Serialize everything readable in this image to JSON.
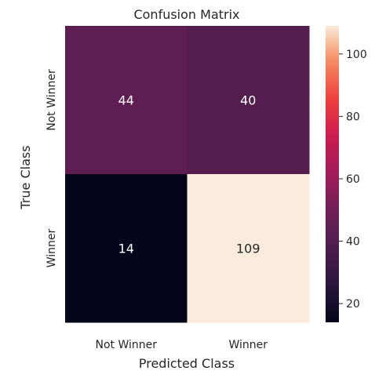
{
  "chart_data": {
    "type": "heatmap",
    "title": "Confusion Matrix",
    "xlabel": "Predicted Class",
    "ylabel": "True Class",
    "x_categories": [
      "Not Winner",
      "Winner"
    ],
    "y_categories": [
      "Not Winner",
      "Winner"
    ],
    "values": [
      [
        44,
        40
      ],
      [
        14,
        109
      ]
    ],
    "annotations": true,
    "colormap": "rocket",
    "vmin": 14,
    "vmax": 109,
    "colorbar": {
      "ticks": [
        20,
        40,
        60,
        80,
        100
      ],
      "labels": [
        "20",
        "40",
        "60",
        "80",
        "100"
      ]
    }
  }
}
